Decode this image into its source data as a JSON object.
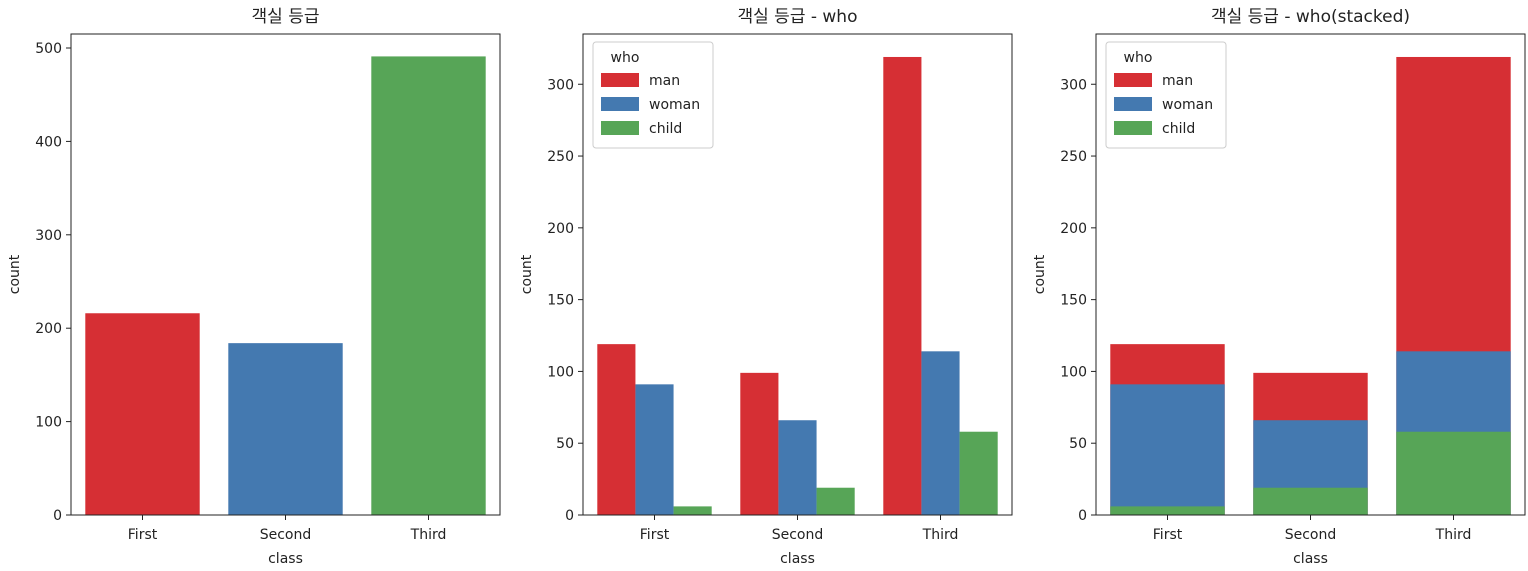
{
  "chart_data": [
    {
      "type": "bar",
      "title": "객실 등급",
      "xlabel": "class",
      "ylabel": "count",
      "categories": [
        "First",
        "Second",
        "Third"
      ],
      "values": [
        216,
        184,
        491
      ],
      "ylim": [
        0,
        515
      ],
      "yticks": [
        0,
        100,
        200,
        300,
        400,
        500
      ],
      "colors": [
        "#d62f34",
        "#4479b0",
        "#57a557"
      ],
      "grid": false
    },
    {
      "type": "bar",
      "mode": "grouped",
      "title": "객실 등급 - who",
      "xlabel": "class",
      "ylabel": "count",
      "categories": [
        "First",
        "Second",
        "Third"
      ],
      "series": [
        {
          "name": "man",
          "values": [
            119,
            99,
            319
          ],
          "color": "#d62f34"
        },
        {
          "name": "woman",
          "values": [
            91,
            66,
            114
          ],
          "color": "#4479b0"
        },
        {
          "name": "child",
          "values": [
            6,
            19,
            58
          ],
          "color": "#57a557"
        }
      ],
      "ylim": [
        0,
        335
      ],
      "yticks": [
        0,
        50,
        100,
        150,
        200,
        250,
        300
      ],
      "legend": {
        "title": "who",
        "placement": "top-left"
      },
      "grid": false
    },
    {
      "type": "bar",
      "mode": "stacked",
      "title": "객실 등급 - who(stacked)",
      "xlabel": "class",
      "ylabel": "count",
      "categories": [
        "First",
        "Second",
        "Third"
      ],
      "series": [
        {
          "name": "man",
          "values": [
            119,
            99,
            319
          ],
          "color": "#d62f34"
        },
        {
          "name": "woman",
          "values": [
            91,
            66,
            114
          ],
          "color": "#4479b0"
        },
        {
          "name": "child",
          "values": [
            6,
            19,
            58
          ],
          "color": "#57a557"
        }
      ],
      "ylim": [
        0,
        335
      ],
      "yticks": [
        0,
        50,
        100,
        150,
        200,
        250,
        300
      ],
      "legend": {
        "title": "who",
        "placement": "top-left"
      },
      "grid": false
    }
  ]
}
